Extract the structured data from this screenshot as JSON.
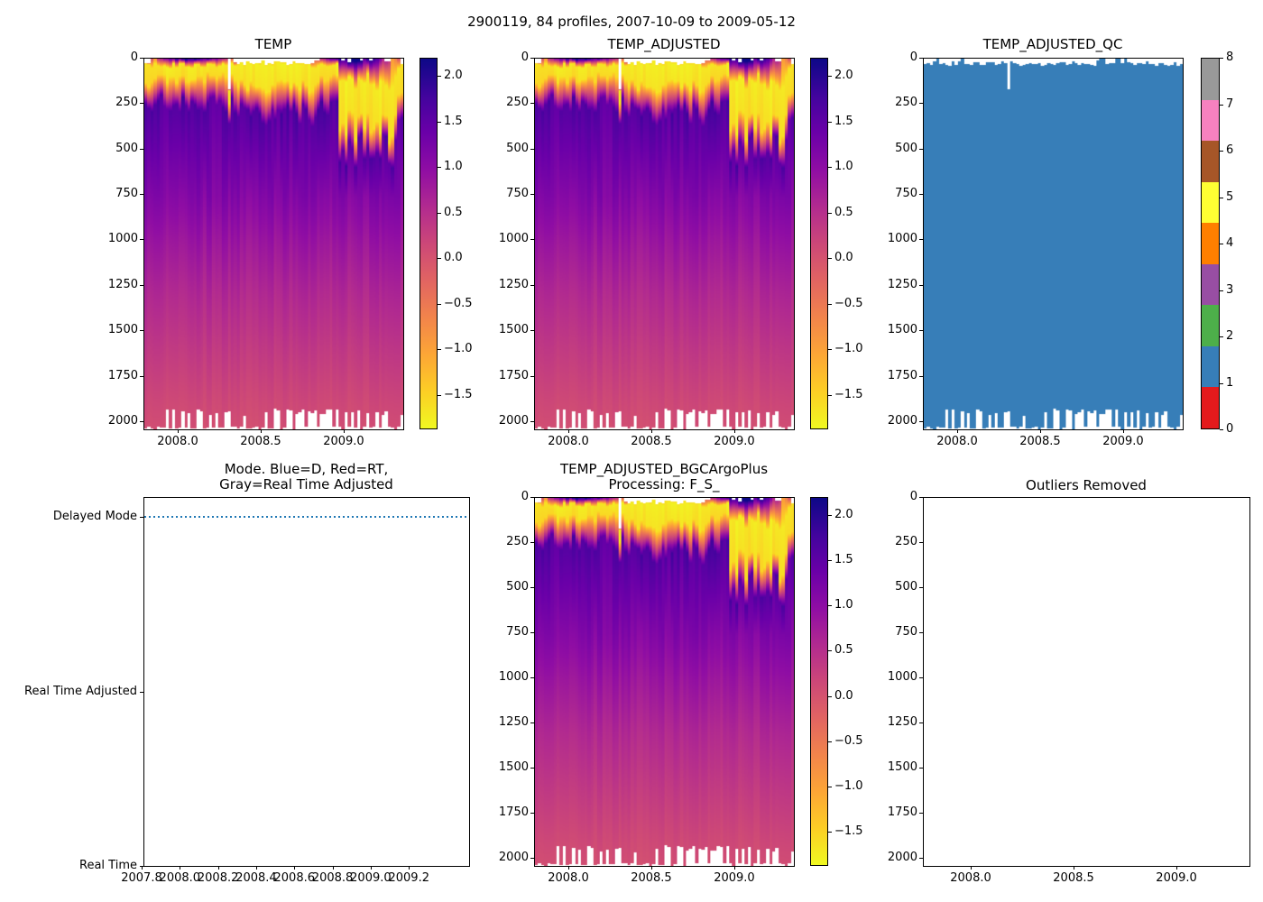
{
  "chart_data": {
    "type": "heatmap",
    "suptitle": "2900119, 84 profiles, 2007-10-09 to 2009-05-12",
    "float_id": "2900119",
    "n_profiles": 84,
    "date_range": "2007-10-09 to 2009-05-12",
    "depth_axis_max": 2045,
    "value_range": [
      -1.88,
      2.2
    ],
    "colormap": {
      "name": "plasma_reversed",
      "stops": [
        "#0d0887",
        "#41049d",
        "#6a00a8",
        "#8f0da4",
        "#b12a90",
        "#cc4778",
        "#e16462",
        "#f2844b",
        "#fca636",
        "#fcce25",
        "#f0f921"
      ]
    },
    "profile_model": {
      "summer_surface_max_c": 2.2,
      "winter_surface_c": -1.7,
      "tmin_layer_temp_c": -1.8,
      "subsurface_tmax_c": 1.6,
      "tmax_depth_dbar": 400,
      "deep_points": [
        [
          760,
          1.12
        ],
        [
          1000,
          0.86
        ],
        [
          1300,
          0.58
        ],
        [
          1600,
          0.35
        ],
        [
          1900,
          0.14
        ],
        [
          2060,
          0.04
        ]
      ]
    },
    "panels": [
      {
        "id": "temp",
        "title": "TEMP",
        "kind": "temp",
        "x_range": [
          2007.7935,
          2009.359
        ],
        "x_ticks": [
          2008.0,
          2008.5,
          2009.0
        ],
        "x_tick_labels": [
          "2008.0",
          "2008.5",
          "2009.0"
        ],
        "y_ticks": [
          0,
          250,
          500,
          750,
          1000,
          1250,
          1500,
          1750,
          2000
        ],
        "y_tick_labels": [
          "0",
          "250",
          "500",
          "750",
          "1000",
          "1250",
          "1500",
          "1750",
          "2000"
        ],
        "colorbar": {
          "ticks": [
            2.0,
            1.5,
            1.0,
            0.5,
            0.0,
            -0.5,
            -1.0,
            -1.5
          ],
          "labels": [
            "2.0",
            "1.5",
            "1.0",
            "0.5",
            "0.0",
            "−0.5",
            "−1.0",
            "−1.5"
          ]
        }
      },
      {
        "id": "temp_adjusted",
        "title": "TEMP_ADJUSTED",
        "kind": "temp",
        "x_range": [
          2007.7935,
          2009.359
        ],
        "x_ticks": [
          2008.0,
          2008.5,
          2009.0
        ],
        "x_tick_labels": [
          "2008.0",
          "2008.5",
          "2009.0"
        ],
        "y_ticks": [
          0,
          250,
          500,
          750,
          1000,
          1250,
          1500,
          1750,
          2000
        ],
        "y_tick_labels": [
          "0",
          "250",
          "500",
          "750",
          "1000",
          "1250",
          "1500",
          "1750",
          "2000"
        ],
        "colorbar": {
          "ticks": [
            2.0,
            1.5,
            1.0,
            0.5,
            0.0,
            -0.5,
            -1.0,
            -1.5
          ],
          "labels": [
            "2.0",
            "1.5",
            "1.0",
            "0.5",
            "0.0",
            "−0.5",
            "−1.0",
            "−1.5"
          ]
        }
      },
      {
        "id": "temp_adjusted_qc",
        "title": "TEMP_ADJUSTED_QC",
        "kind": "qc",
        "x_range": [
          2007.7935,
          2009.359
        ],
        "x_ticks": [
          2008.0,
          2008.5,
          2009.0
        ],
        "x_tick_labels": [
          "2008.0",
          "2008.5",
          "2009.0"
        ],
        "y_ticks": [
          0,
          250,
          500,
          750,
          1000,
          1250,
          1500,
          1750,
          2000
        ],
        "y_tick_labels": [
          "0",
          "250",
          "500",
          "750",
          "1000",
          "1250",
          "1500",
          "1750",
          "2000"
        ],
        "qc_fill_value": 1,
        "qc_fill_color": "#377eb8",
        "colorbar": {
          "ticks": [
            8,
            7,
            6,
            5,
            4,
            3,
            2,
            1,
            0
          ],
          "labels": [
            "8",
            "7",
            "6",
            "5",
            "4",
            "3",
            "2",
            "1",
            "0"
          ],
          "value_range": [
            0,
            8
          ],
          "colors_top_to_bottom": [
            "#999999",
            "#f781bf",
            "#a65628",
            "#ffff33",
            "#ff7f00",
            "#984ea3",
            "#4daf4a",
            "#377eb8",
            "#e41a1c"
          ]
        }
      },
      {
        "id": "mode",
        "title": "Mode. Blue=D, Red=RT,\nGray=Real Time Adjusted",
        "kind": "mode",
        "x_range": [
          2007.8095,
          2009.5155
        ],
        "x_ticks": [
          2007.8,
          2008.0,
          2008.2,
          2008.4,
          2008.6,
          2008.8,
          2009.0,
          2009.2
        ],
        "x_tick_labels": [
          "2007.8",
          "2008.0",
          "2008.2",
          "2008.4",
          "2008.6",
          "2008.8",
          "2009.0",
          "2009.2"
        ],
        "y_tick_labels": [
          "Delayed Mode",
          "Real Time Adjusted",
          "Real Time"
        ],
        "line": {
          "at": "Delayed Mode",
          "color": "#1f77b4",
          "style": "dotted"
        }
      },
      {
        "id": "temp_adjusted_bgc",
        "title": "TEMP_ADJUSTED_BGCArgoPlus\nProcessing: F_S_",
        "kind": "temp",
        "x_range": [
          2007.7935,
          2009.359
        ],
        "x_ticks": [
          2008.0,
          2008.5,
          2009.0
        ],
        "x_tick_labels": [
          "2008.0",
          "2008.5",
          "2009.0"
        ],
        "y_ticks": [
          0,
          250,
          500,
          750,
          1000,
          1250,
          1500,
          1750,
          2000
        ],
        "y_tick_labels": [
          "0",
          "250",
          "500",
          "750",
          "1000",
          "1250",
          "1500",
          "1750",
          "2000"
        ],
        "colorbar": {
          "ticks": [
            2.0,
            1.5,
            1.0,
            0.5,
            0.0,
            -0.5,
            -1.0,
            -1.5
          ],
          "labels": [
            "2.0",
            "1.5",
            "1.0",
            "0.5",
            "0.0",
            "−0.5",
            "−1.0",
            "−1.5"
          ]
        }
      },
      {
        "id": "outliers_removed",
        "title": "Outliers Removed",
        "kind": "empty",
        "x_range": [
          2007.7675,
          2009.355
        ],
        "x_ticks": [
          2008.0,
          2008.5,
          2009.0
        ],
        "x_tick_labels": [
          "2008.0",
          "2008.5",
          "2009.0"
        ],
        "y_ticks": [
          0,
          250,
          500,
          750,
          1000,
          1250,
          1500,
          1750,
          2000
        ],
        "y_tick_labels": [
          "0",
          "250",
          "500",
          "750",
          "1000",
          "1250",
          "1500",
          "1750",
          "2000"
        ]
      }
    ]
  }
}
